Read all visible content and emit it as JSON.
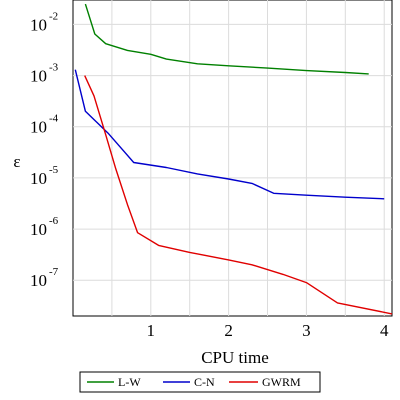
{
  "chart_data": {
    "type": "line",
    "title": "",
    "xlabel": "CPU time",
    "ylabel": "ε",
    "xlim": [
      0,
      4.1
    ],
    "ylim": [
      2e-08,
      0.03
    ],
    "yscale": "log",
    "grid": true,
    "legend_position": "bottom",
    "x_ticks": [
      {
        "value": 1,
        "label": "1"
      },
      {
        "value": 2,
        "label": "2"
      },
      {
        "value": 3,
        "label": "3"
      },
      {
        "value": 4,
        "label": "4"
      }
    ],
    "y_ticks": [
      {
        "value": 0.01,
        "base": "10",
        "exp": "-2"
      },
      {
        "value": 0.001,
        "base": "10",
        "exp": "-3"
      },
      {
        "value": 0.0001,
        "base": "10",
        "exp": "-4"
      },
      {
        "value": 1e-05,
        "base": "10",
        "exp": "-5"
      },
      {
        "value": 1e-06,
        "base": "10",
        "exp": "-6"
      },
      {
        "value": 1e-07,
        "base": "10",
        "exp": "-7"
      }
    ],
    "series": [
      {
        "name": "L-W",
        "color": "#008000",
        "x": [
          0.16,
          0.28,
          0.42,
          0.7,
          1.0,
          1.2,
          1.6,
          2.0,
          2.5,
          3.0,
          3.5,
          3.8
        ],
        "y": [
          0.025,
          0.0065,
          0.0042,
          0.0031,
          0.0026,
          0.0021,
          0.0017,
          0.00155,
          0.0014,
          0.00125,
          0.00115,
          0.00108
        ]
      },
      {
        "name": "C-N",
        "color": "#0000CC",
        "x": [
          0.03,
          0.16,
          0.45,
          0.78,
          1.2,
          1.6,
          2.0,
          2.3,
          2.58,
          3.0,
          3.5,
          4.0
        ],
        "y": [
          0.0013,
          0.0002,
          7.5e-05,
          2e-05,
          1.6e-05,
          1.2e-05,
          9.5e-06,
          7.8e-06,
          5e-06,
          4.6e-06,
          4.2e-06,
          3.9e-06
        ]
      },
      {
        "name": "GWRM",
        "color": "#E00000",
        "x": [
          0.15,
          0.27,
          0.42,
          0.55,
          0.7,
          0.83,
          1.1,
          1.5,
          2.0,
          2.3,
          2.7,
          3.0,
          3.4,
          4.1
        ],
        "y": [
          0.001,
          0.0004,
          7e-05,
          1.5e-05,
          3e-06,
          8.5e-07,
          4.8e-07,
          3.5e-07,
          2.5e-07,
          2e-07,
          1.3e-07,
          9e-08,
          3.6e-08,
          2.2e-08
        ]
      }
    ]
  }
}
